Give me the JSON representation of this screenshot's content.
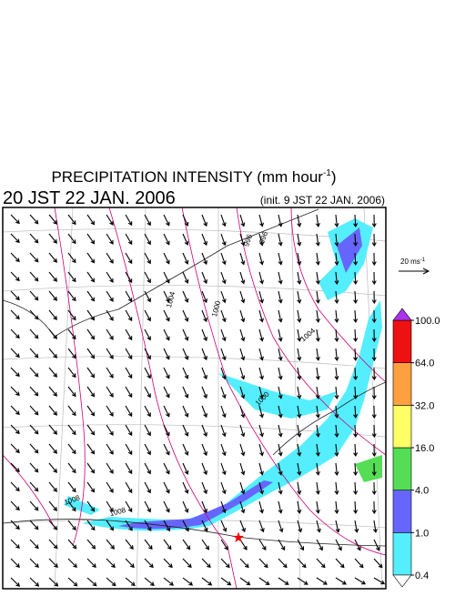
{
  "header": {
    "title": "PRECIPITATION INTENSITY (mm hour",
    "title_sup": "-1",
    "title_end": ")",
    "valid_time": "20 JST 22 JAN. 2006",
    "init_time": "(init. 9 JST 22 JAN. 2006)"
  },
  "wind_scale": {
    "label": "20 ms",
    "label_sup": "-1"
  },
  "colorbar": {
    "levels": [
      {
        "value": 0.4,
        "label": "0.4"
      },
      {
        "value": 1,
        "label": "1.0"
      },
      {
        "value": 4,
        "label": "4.0"
      },
      {
        "value": 16,
        "label": "16.0"
      },
      {
        "value": 32,
        "label": "32.0"
      },
      {
        "value": 64,
        "label": "64.0"
      },
      {
        "value": 100,
        "label": "100.0"
      }
    ],
    "colors": [
      "#55eeff",
      "#6666ff",
      "#55dd55",
      "#ffff66",
      "#ffa040",
      "#ee1111"
    ],
    "below_color": "#ffffff",
    "above_color": "#aa33ee"
  },
  "map": {
    "contour_labels": [
      "996",
      "996",
      "1000",
      "1000",
      "1004",
      "1004",
      "1008",
      "1008"
    ]
  }
}
